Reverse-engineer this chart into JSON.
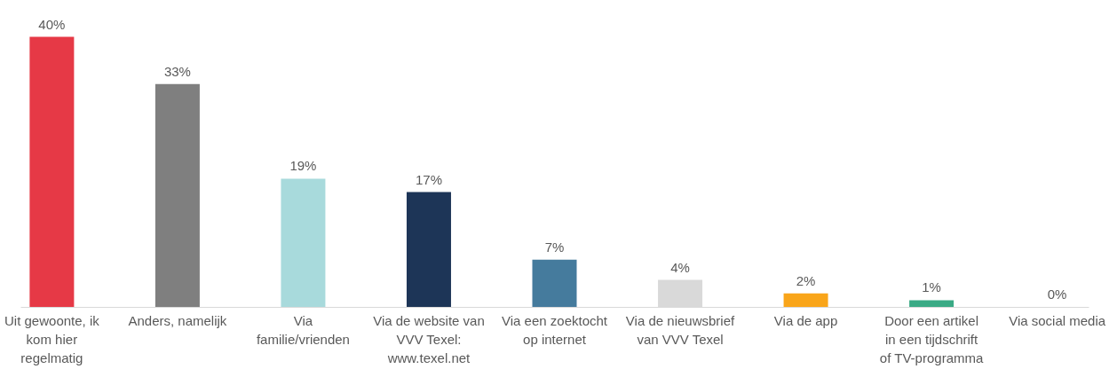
{
  "chart_data": {
    "type": "bar",
    "categories": [
      "Uit gewoonte, ik kom hier regelmatig",
      "Anders, namelijk",
      "Via familie/vrienden",
      "Via de website van VVV Texel: www.texel.net",
      "Via een zoektocht op internet",
      "Via de nieuwsbrief van VVV Texel",
      "Via de app",
      "Door een artikel in een tijdschrift of TV-programma",
      "Via social media"
    ],
    "values": [
      40,
      33,
      19,
      17,
      7,
      4,
      2,
      1,
      0
    ],
    "colors": [
      "#e63946",
      "#7f7f7f",
      "#a8dadc",
      "#1d3557",
      "#457b9d",
      "#d9d9d9",
      "#f9a51a",
      "#3aaa85",
      "#2a9d8f"
    ],
    "value_labels": [
      "40%",
      "33%",
      "19%",
      "17%",
      "7%",
      "4%",
      "2%",
      "1%",
      "0%"
    ],
    "grid": false
  }
}
